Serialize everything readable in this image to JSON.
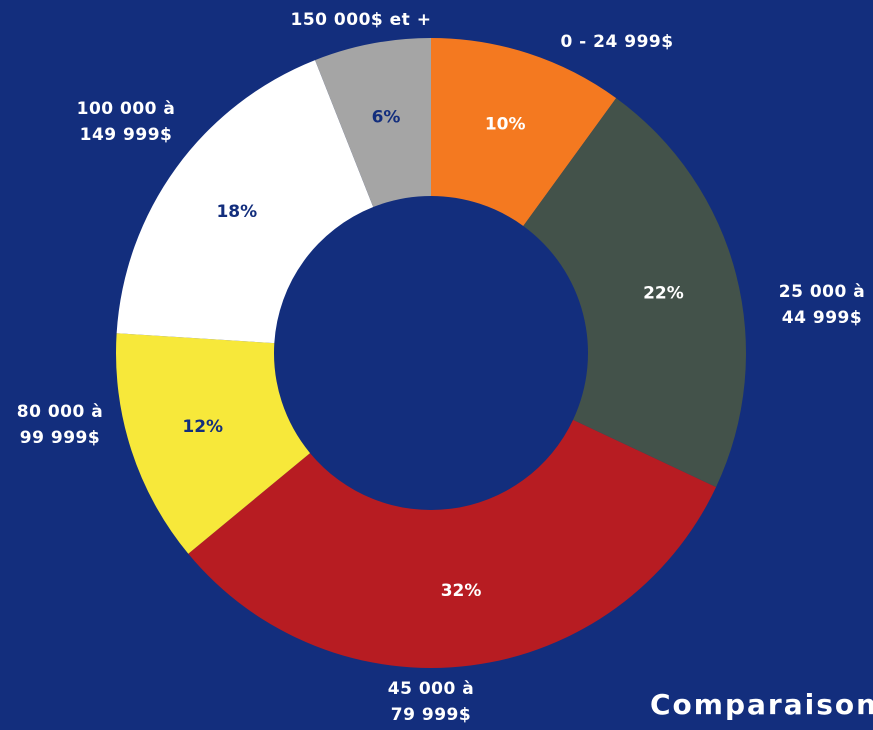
{
  "chart_data": {
    "type": "donut",
    "categories": [
      "0 - 24 999$",
      "25 000 à 44 999$",
      "45 000 à 79 999$",
      "80 000 à 99 999$",
      "100 000 à 149 999$",
      "150 000$ et +"
    ],
    "values": [
      10,
      22,
      32,
      12,
      18,
      6
    ],
    "value_labels": [
      "10%",
      "22%",
      "32%",
      "12%",
      "18%",
      "6%"
    ],
    "colors": [
      "#f47920",
      "#43524a",
      "#b71c22",
      "#f7e83a",
      "#ffffff",
      "#a5a5a5"
    ],
    "annotation": "Comparaison"
  }
}
